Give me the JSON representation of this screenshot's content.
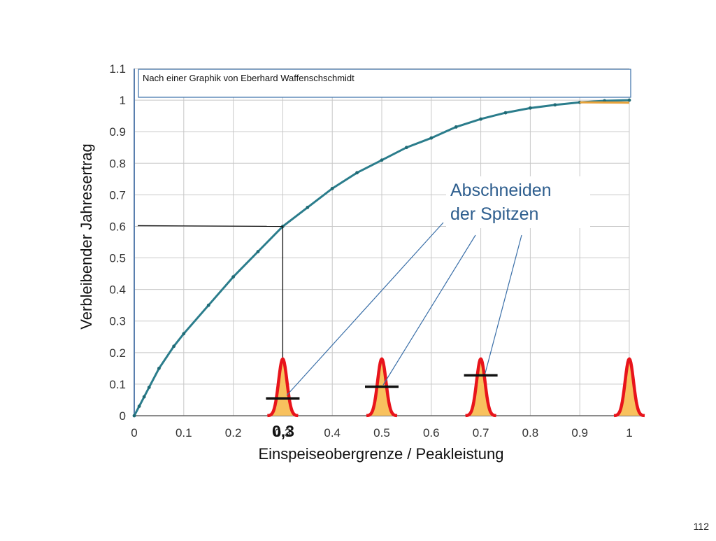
{
  "source_note": "Nach einer Graphik von Eberhard Waffenschschmidt",
  "slide_number": "112",
  "callout": {
    "line1": "Abschneiden",
    "line2": "der Spitzen",
    "color": "#2e5e8e"
  },
  "marker_label": "0,3",
  "colors": {
    "curve": "#2b7d8c",
    "curve_dots": "#1f6a75",
    "orange_line": "#e8a23a",
    "peak_fill": "#f8c15e",
    "peak_outline": "#e8141b",
    "callout_line": "#3a6fa8",
    "grid": "#c8c8c8",
    "axis_text": "#333333"
  },
  "chart_data": {
    "type": "line",
    "xlabel": "Einspeiseobergrenze / Peakleistung",
    "ylabel": "Verbleibender Jahresertrag",
    "xlim": [
      0,
      1.0
    ],
    "ylim": [
      0,
      1.1
    ],
    "x_ticks": [
      "0",
      "0.1",
      "0.2",
      "0.3",
      "0.4",
      "0.5",
      "0.6",
      "0.7",
      "0.8",
      "0.9",
      "1"
    ],
    "y_ticks": [
      "0",
      "0.1",
      "0.2",
      "0.3",
      "0.4",
      "0.5",
      "0.6",
      "0.7",
      "0.8",
      "0.9",
      "1",
      "1.1"
    ],
    "grid": true,
    "series": [
      {
        "x": [
          0,
          0.01,
          0.02,
          0.03,
          0.05,
          0.08,
          0.1,
          0.15,
          0.2,
          0.25,
          0.3,
          0.35,
          0.4,
          0.45,
          0.5,
          0.55,
          0.6,
          0.65,
          0.7,
          0.75,
          0.8,
          0.85,
          0.9,
          0.95,
          1.0
        ],
        "y": [
          0,
          0.03,
          0.06,
          0.09,
          0.15,
          0.22,
          0.26,
          0.35,
          0.44,
          0.52,
          0.6,
          0.66,
          0.72,
          0.77,
          0.81,
          0.85,
          0.88,
          0.915,
          0.94,
          0.96,
          0.975,
          0.985,
          0.993,
          0.998,
          1.0
        ]
      }
    ],
    "orange_segment": {
      "x": [
        0.9,
        1.0
      ],
      "y": [
        0.993,
        0.992
      ]
    },
    "marker": {
      "x": 0.3,
      "y": 0.6
    },
    "peaks": [
      {
        "x": 0.3,
        "cap_y": 0.055
      },
      {
        "x": 0.5,
        "cap_y": 0.092
      },
      {
        "x": 0.7,
        "cap_y": 0.128
      },
      {
        "x": 1.0,
        "cap_y": null
      }
    ],
    "peak_height": 0.18
  }
}
